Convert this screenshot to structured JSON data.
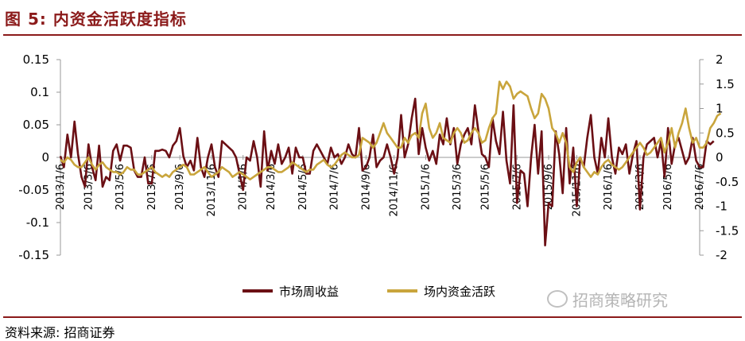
{
  "header": {
    "title": "图 5: 内资金活跃度指标"
  },
  "footer": {
    "source": "资料来源: 招商证券"
  },
  "watermark": {
    "text": "招商策略研究"
  },
  "chart_data": {
    "type": "line",
    "title": "图 5: 内资金活跃度指标",
    "legend_position": "bottom-center",
    "grid": false,
    "y_left": {
      "range": [
        -0.15,
        0.15
      ],
      "ticks": [
        "0.15",
        "0.1",
        "0.05",
        "0",
        "-0.05",
        "-0.1",
        "-0.15"
      ]
    },
    "y_right": {
      "range": [
        -2,
        2
      ],
      "ticks": [
        "2",
        "1.5",
        "1",
        "0.5",
        "0",
        "-0.5",
        "-1",
        "-1.5",
        "-2"
      ]
    },
    "x_range": [
      0,
      182
    ],
    "x_ticks": [
      {
        "label": "2013/1/6",
        "pos": 0
      },
      {
        "label": "2013/3/6",
        "pos": 8
      },
      {
        "label": "2013/5/6",
        "pos": 17
      },
      {
        "label": "2013/7/6",
        "pos": 26
      },
      {
        "label": "2013/9/6",
        "pos": 34
      },
      {
        "label": "2013/11/6",
        "pos": 43
      },
      {
        "label": "2014/1/6",
        "pos": 52
      },
      {
        "label": "2014/3/6",
        "pos": 60
      },
      {
        "label": "2014/5/6",
        "pos": 69
      },
      {
        "label": "2014/7/6",
        "pos": 78
      },
      {
        "label": "2014/9/6",
        "pos": 87
      },
      {
        "label": "2014/11/6",
        "pos": 95
      },
      {
        "label": "2015/1/6",
        "pos": 104
      },
      {
        "label": "2015/3/6",
        "pos": 113
      },
      {
        "label": "2015/5/6",
        "pos": 121
      },
      {
        "label": "2015/7/6",
        "pos": 130
      },
      {
        "label": "2015/9/6",
        "pos": 139
      },
      {
        "label": "2015/11/6",
        "pos": 147
      },
      {
        "label": "2016/1/6",
        "pos": 156
      },
      {
        "label": "2016/3/6",
        "pos": 165
      },
      {
        "label": "2016/5/6",
        "pos": 173
      },
      {
        "label": "2016/7/6",
        "pos": 182
      }
    ],
    "series": [
      {
        "name": "市场周收益",
        "axis": "left",
        "color": "#6B0F14",
        "values": [
          0.002,
          -0.015,
          0.035,
          0.0,
          0.055,
          0.005,
          -0.03,
          -0.045,
          0.02,
          -0.015,
          -0.035,
          0.018,
          -0.045,
          -0.03,
          -0.035,
          0.01,
          0.02,
          -0.005,
          0.018,
          0.018,
          0.015,
          -0.02,
          -0.03,
          -0.03,
          0.0,
          -0.04,
          -0.04,
          0.01,
          0.01,
          0.012,
          0.01,
          0.0,
          0.018,
          0.025,
          0.045,
          0.002,
          -0.015,
          -0.005,
          -0.02,
          0.03,
          -0.015,
          -0.03,
          0.0,
          0.02,
          -0.015,
          -0.03,
          0.025,
          0.02,
          0.015,
          0.01,
          0.0,
          -0.025,
          -0.05,
          0.0,
          -0.005,
          0.025,
          0.0,
          -0.045,
          0.04,
          -0.02,
          0.01,
          -0.01,
          0.02,
          -0.01,
          0.0,
          0.015,
          -0.025,
          0.015,
          0.0,
          0.0,
          -0.025,
          -0.025,
          0.01,
          0.02,
          0.01,
          0.0,
          -0.01,
          0.015,
          0.0,
          0.005,
          -0.01,
          0.0,
          0.02,
          0.005,
          0.0,
          0.045,
          -0.02,
          -0.015,
          0.0,
          0.035,
          -0.015,
          -0.005,
          0.0,
          0.02,
          0.0,
          -0.025,
          0.0,
          0.065,
          0.0,
          0.02,
          0.06,
          0.09,
          0.005,
          0.045,
          0.015,
          -0.005,
          0.01,
          -0.01,
          0.035,
          0.02,
          0.06,
          0.02,
          0.045,
          -0.01,
          0.02,
          0.035,
          0.045,
          0.02,
          0.08,
          0.04,
          0.005,
          0.0,
          -0.015,
          0.06,
          0.025,
          0.005,
          0.07,
          -0.005,
          -0.04,
          0.08,
          -0.07,
          -0.02,
          -0.025,
          -0.075,
          0.0,
          0.05,
          -0.025,
          0.04,
          -0.135,
          -0.07,
          -0.075,
          0.04,
          0.005,
          -0.055,
          0.045,
          -0.04,
          0.015,
          -0.075,
          0.0,
          -0.015,
          0.03,
          0.065,
          0.0,
          -0.025,
          0.03,
          0.0,
          0.06,
          0.0,
          -0.025,
          0.015,
          0.005,
          0.02,
          -0.025,
          0.005,
          0.025,
          -0.08,
          0.0,
          0.02,
          0.025,
          0.03,
          0.0,
          0.025,
          -0.03,
          0.045,
          -0.01,
          0.02,
          0.03,
          0.01,
          -0.01,
          0.0,
          0.03,
          -0.005,
          -0.015,
          -0.015,
          0.025,
          0.02,
          0.025
        ]
      },
      {
        "name": "场内资金活跃",
        "axis": "right",
        "color": "#C9A53C",
        "values": [
          -0.05,
          -0.1,
          0.0,
          -0.05,
          -0.15,
          -0.2,
          -0.2,
          -0.1,
          0.0,
          -0.15,
          -0.25,
          -0.15,
          -0.1,
          -0.2,
          -0.25,
          -0.3,
          -0.3,
          -0.35,
          -0.3,
          -0.2,
          -0.25,
          -0.25,
          -0.35,
          -0.35,
          -0.3,
          -0.25,
          -0.2,
          -0.3,
          -0.35,
          -0.4,
          -0.35,
          -0.4,
          -0.3,
          -0.25,
          -0.2,
          -0.15,
          -0.2,
          -0.35,
          -0.35,
          -0.3,
          -0.25,
          -0.2,
          -0.3,
          -0.4,
          -0.35,
          -0.3,
          -0.2,
          -0.25,
          -0.3,
          -0.4,
          -0.35,
          -0.3,
          -0.35,
          -0.4,
          -0.45,
          -0.4,
          -0.35,
          -0.3,
          -0.25,
          -0.2,
          -0.2,
          -0.25,
          -0.3,
          -0.3,
          -0.25,
          -0.2,
          -0.1,
          -0.15,
          -0.2,
          -0.25,
          -0.3,
          -0.25,
          -0.25,
          -0.15,
          -0.1,
          -0.05,
          -0.15,
          -0.2,
          -0.15,
          -0.05,
          0.05,
          0.1,
          0.05,
          0.0,
          0.0,
          0.05,
          0.4,
          0.35,
          0.3,
          0.2,
          0.3,
          0.5,
          0.7,
          0.5,
          0.4,
          0.3,
          0.2,
          0.2,
          0.4,
          0.3,
          0.45,
          0.5,
          0.4,
          0.9,
          1.1,
          0.6,
          0.4,
          0.5,
          0.7,
          0.4,
          0.35,
          0.3,
          0.5,
          0.6,
          0.5,
          0.3,
          0.35,
          0.5,
          0.6,
          0.5,
          0.3,
          0.35,
          0.6,
          0.8,
          0.9,
          1.55,
          1.4,
          1.55,
          1.45,
          1.2,
          1.3,
          1.35,
          1.3,
          1.25,
          1.0,
          0.8,
          0.9,
          1.3,
          1.2,
          1.0,
          0.6,
          0.5,
          0.3,
          0.5,
          0.3,
          -0.2,
          -0.3,
          -0.1,
          0.0,
          -0.2,
          -0.3,
          -0.4,
          -0.3,
          -0.35,
          -0.2,
          -0.1,
          -0.05,
          -0.15,
          -0.2,
          -0.25,
          -0.2,
          -0.1,
          0.0,
          0.1,
          0.2,
          0.3,
          0.2,
          0.05,
          0.1,
          0.2,
          0.3,
          0.4,
          0.1,
          0.3,
          0.6,
          0.2,
          0.5,
          0.7,
          1.0,
          0.6,
          0.3,
          0.4,
          0.2,
          0.2,
          0.3,
          0.6,
          0.7,
          0.85,
          0.9
        ]
      }
    ]
  }
}
